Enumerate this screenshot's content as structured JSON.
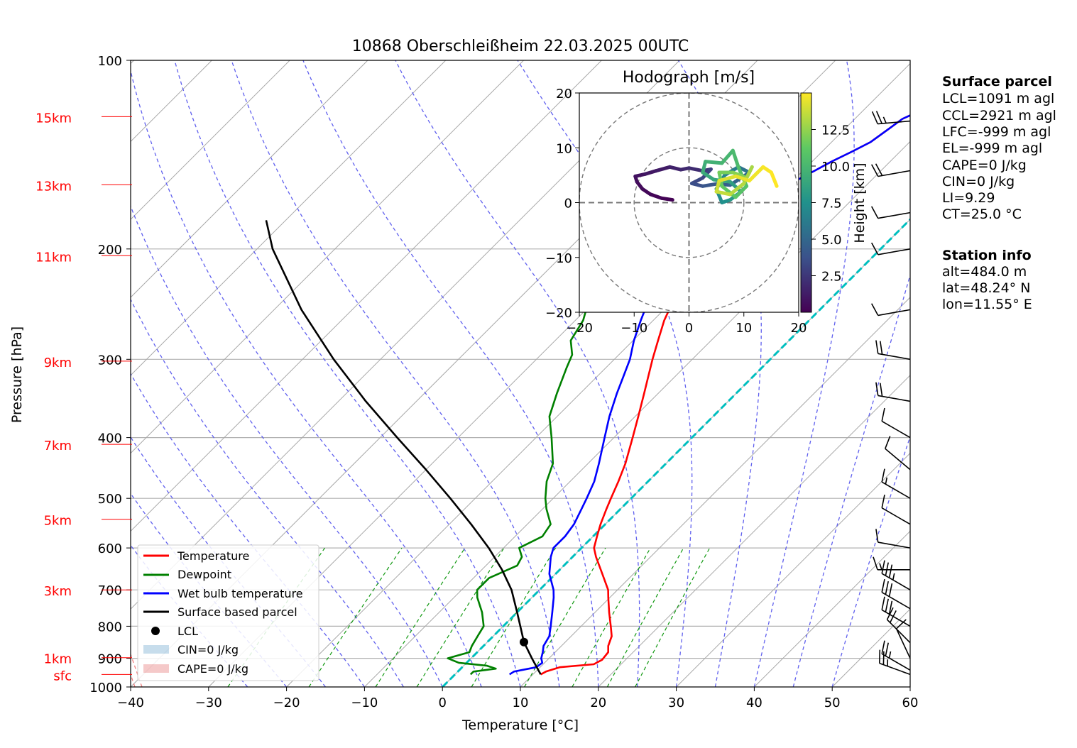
{
  "chart_data": {
    "type": "line",
    "title": "10868 Oberschleißheim 22.03.2025 00UTC",
    "xlabel": "Temperature [°C]",
    "ylabel": "Pressure [hPa]",
    "xlim": [
      -40,
      60
    ],
    "ylim": [
      1000,
      100
    ],
    "y_scale": "log",
    "x_ticks": [
      "−40",
      "−30",
      "−20",
      "−10",
      "0",
      "10",
      "20",
      "30",
      "40",
      "50",
      "60"
    ],
    "y_ticks": [
      {
        "p": 1000,
        "label": "1000"
      },
      {
        "p": 900,
        "label": "900"
      },
      {
        "p": 800,
        "label": "800"
      },
      {
        "p": 700,
        "label": "700"
      },
      {
        "p": 600,
        "label": "600"
      },
      {
        "p": 500,
        "label": "500"
      },
      {
        "p": 400,
        "label": "400"
      },
      {
        "p": 300,
        "label": "300"
      },
      {
        "p": 200,
        "label": "200"
      },
      {
        "p": 100,
        "label": "100"
      }
    ],
    "height_labels": [
      {
        "label": "15km",
        "p": 123
      },
      {
        "label": "13km",
        "p": 158
      },
      {
        "label": "11km",
        "p": 205
      },
      {
        "label": "9km",
        "p": 302
      },
      {
        "label": "7km",
        "p": 410
      },
      {
        "label": "5km",
        "p": 540
      },
      {
        "label": "3km",
        "p": 700
      },
      {
        "label": "1km",
        "p": 898
      },
      {
        "label": "sfc",
        "p": 955
      }
    ],
    "legend": {
      "placement": "lower-left",
      "entries": [
        "Temperature",
        "Dewpoint",
        "Wet bulb temperature",
        "Surface based parcel",
        "LCL",
        "CIN=0 J/kg",
        "CAPE=0 J/kg"
      ]
    },
    "series": [
      {
        "name": "Temperature",
        "color": "#ff0000",
        "points": [
          [
            955,
            11.0
          ],
          [
            945,
            11.3
          ],
          [
            930,
            12.5
          ],
          [
            920,
            16.5
          ],
          [
            905,
            17.0
          ],
          [
            880,
            16.8
          ],
          [
            860,
            16.0
          ],
          [
            830,
            15.2
          ],
          [
            800,
            13.8
          ],
          [
            760,
            11.8
          ],
          [
            720,
            9.8
          ],
          [
            700,
            8.8
          ],
          [
            660,
            6.0
          ],
          [
            620,
            3.0
          ],
          [
            600,
            1.6
          ],
          [
            575,
            0.5
          ],
          [
            550,
            -0.6
          ],
          [
            520,
            -1.8
          ],
          [
            500,
            -2.6
          ],
          [
            470,
            -3.8
          ],
          [
            440,
            -5.2
          ],
          [
            400,
            -7.6
          ],
          [
            370,
            -9.6
          ],
          [
            340,
            -11.8
          ],
          [
            320,
            -13.4
          ],
          [
            300,
            -15.1
          ],
          [
            280,
            -16.8
          ],
          [
            260,
            -18.6
          ],
          [
            240,
            -20.1
          ],
          [
            220,
            -22.1
          ],
          [
            205,
            -23.4
          ],
          [
            195,
            -24.2
          ],
          [
            185,
            -25.0
          ],
          [
            175,
            -24.7
          ],
          [
            170,
            -23.5
          ],
          [
            165,
            -22.0
          ],
          [
            160,
            -20.8
          ],
          [
            155,
            -19.5
          ],
          [
            150,
            -18.5
          ],
          [
            145,
            -17.5
          ],
          [
            140,
            -16.2
          ],
          [
            135,
            -15.0
          ],
          [
            128,
            -14.3
          ],
          [
            124,
            -13.9
          ],
          [
            120,
            -12.5
          ]
        ]
      },
      {
        "name": "Dewpoint",
        "color": "#008000",
        "points": [
          [
            955,
            2.0
          ],
          [
            945,
            2.0
          ],
          [
            935,
            4.5
          ],
          [
            925,
            3.0
          ],
          [
            915,
            -1.0
          ],
          [
            900,
            -3.0
          ],
          [
            880,
            -1.0
          ],
          [
            860,
            -1.5
          ],
          [
            830,
            -2.0
          ],
          [
            800,
            -2.5
          ],
          [
            760,
            -4.5
          ],
          [
            720,
            -7.0
          ],
          [
            700,
            -8.0
          ],
          [
            670,
            -8.0
          ],
          [
            640,
            -6.0
          ],
          [
            620,
            -6.5
          ],
          [
            600,
            -8.0
          ],
          [
            575,
            -6.5
          ],
          [
            550,
            -7.0
          ],
          [
            520,
            -9.5
          ],
          [
            500,
            -11.0
          ],
          [
            470,
            -13.0
          ],
          [
            440,
            -14.5
          ],
          [
            400,
            -18.0
          ],
          [
            370,
            -21.0
          ],
          [
            340,
            -23.0
          ],
          [
            310,
            -25.0
          ],
          [
            295,
            -26.0
          ],
          [
            280,
            -28.0
          ],
          [
            260,
            -29.0
          ],
          [
            240,
            -31.0
          ],
          [
            220,
            -33.5
          ],
          [
            205,
            -35.0
          ],
          [
            190,
            -36.0
          ],
          [
            180,
            -37.5
          ],
          [
            170,
            -37.0
          ],
          [
            165,
            -36.0
          ],
          [
            160,
            -39.0
          ],
          [
            155,
            -42.0
          ],
          [
            150,
            -45.0
          ],
          [
            145,
            -44.0
          ],
          [
            140,
            -45.0
          ],
          [
            130,
            -44.0
          ],
          [
            125,
            -43.5
          ],
          [
            121,
            -43.0
          ]
        ]
      },
      {
        "name": "Wet bulb temperature",
        "color": "#0000ff",
        "points": [
          [
            955,
            7.0
          ],
          [
            945,
            7.2
          ],
          [
            930,
            9.5
          ],
          [
            915,
            9.7
          ],
          [
            900,
            9.0
          ],
          [
            880,
            8.4
          ],
          [
            860,
            7.7
          ],
          [
            830,
            7.2
          ],
          [
            800,
            6.1
          ],
          [
            760,
            4.5
          ],
          [
            720,
            2.8
          ],
          [
            700,
            1.8
          ],
          [
            660,
            -0.8
          ],
          [
            620,
            -2.8
          ],
          [
            600,
            -3.6
          ],
          [
            575,
            -3.6
          ],
          [
            550,
            -4.0
          ],
          [
            520,
            -5.0
          ],
          [
            500,
            -5.7
          ],
          [
            470,
            -6.9
          ],
          [
            440,
            -8.6
          ],
          [
            400,
            -11.2
          ],
          [
            370,
            -13.3
          ],
          [
            340,
            -15.3
          ],
          [
            320,
            -16.6
          ],
          [
            300,
            -18.0
          ],
          [
            280,
            -19.9
          ],
          [
            260,
            -21.6
          ],
          [
            240,
            -23.3
          ],
          [
            220,
            -25.7
          ],
          [
            205,
            -27.1
          ],
          [
            195,
            -28.0
          ],
          [
            185,
            -28.8
          ],
          [
            175,
            -28.0
          ],
          [
            170,
            -25.5
          ],
          [
            165,
            -22.0
          ],
          [
            160,
            -20.8
          ],
          [
            155,
            -19.5
          ],
          [
            150,
            -18.5
          ],
          [
            145,
            -17.5
          ],
          [
            140,
            -16.2
          ],
          [
            135,
            -15.0
          ],
          [
            128,
            -14.3
          ],
          [
            124,
            -13.9
          ],
          [
            120,
            -12.5
          ]
        ]
      },
      {
        "name": "Surface based parcel",
        "color": "#000000",
        "points": [
          [
            955,
            11.0
          ],
          [
            900,
            7.8
          ],
          [
            848,
            4.7
          ],
          [
            800,
            2.2
          ],
          [
            760,
            0.0
          ],
          [
            700,
            -3.6
          ],
          [
            650,
            -7.4
          ],
          [
            600,
            -11.9
          ],
          [
            550,
            -17.2
          ],
          [
            500,
            -23.2
          ],
          [
            450,
            -30.0
          ],
          [
            400,
            -37.8
          ],
          [
            350,
            -46.5
          ],
          [
            300,
            -56.0
          ],
          [
            250,
            -66.5
          ],
          [
            200,
            -78.0
          ],
          [
            180,
            -82.5
          ]
        ]
      }
    ],
    "lcl": {
      "p": 848,
      "t": 4.7
    },
    "freezing_line": {
      "temperature": 0,
      "color": "#00bfbf"
    },
    "wind_barbs": [
      {
        "p": 955,
        "dir": 290,
        "speed_kt": 25
      },
      {
        "p": 940,
        "dir": 300,
        "speed_kt": 25
      },
      {
        "p": 900,
        "dir": 335,
        "speed_kt": 10
      },
      {
        "p": 850,
        "dir": 315,
        "speed_kt": 20
      },
      {
        "p": 800,
        "dir": 300,
        "speed_kt": 30
      },
      {
        "p": 750,
        "dir": 300,
        "speed_kt": 30
      },
      {
        "p": 700,
        "dir": 300,
        "speed_kt": 35
      },
      {
        "p": 650,
        "dir": 270,
        "speed_kt": 15
      },
      {
        "p": 600,
        "dir": 280,
        "speed_kt": 10
      },
      {
        "p": 550,
        "dir": 300,
        "speed_kt": 10
      },
      {
        "p": 500,
        "dir": 300,
        "speed_kt": 15
      },
      {
        "p": 450,
        "dir": 310,
        "speed_kt": 10
      },
      {
        "p": 400,
        "dir": 300,
        "speed_kt": 10
      },
      {
        "p": 350,
        "dir": 280,
        "speed_kt": 20
      },
      {
        "p": 300,
        "dir": 280,
        "speed_kt": 20
      },
      {
        "p": 250,
        "dir": 260,
        "speed_kt": 10
      },
      {
        "p": 200,
        "dir": 260,
        "speed_kt": 10
      },
      {
        "p": 175,
        "dir": 260,
        "speed_kt": 10
      },
      {
        "p": 150,
        "dir": 260,
        "speed_kt": 20
      },
      {
        "p": 125,
        "dir": 265,
        "speed_kt": 25
      }
    ],
    "hodograph": {
      "title": "Hodograph [m/s]",
      "xlim": [
        -20,
        20
      ],
      "ylim": [
        -20,
        20
      ],
      "ticks": [
        "−20",
        "−10",
        "0",
        "10",
        "20"
      ],
      "colorbar": {
        "label": "Height [km]",
        "ticks": [
          "2.5",
          "5.0",
          "7.5",
          "10.0",
          "12.5"
        ],
        "range_km": [
          0,
          15
        ]
      },
      "points": [
        [
          -3,
          0.5,
          0.1
        ],
        [
          -5,
          0.8,
          0.2
        ],
        [
          -7,
          1.5,
          0.3
        ],
        [
          -8.5,
          2.5,
          0.5
        ],
        [
          -9.5,
          3.8,
          0.6
        ],
        [
          -9.8,
          4.8,
          0.8
        ],
        [
          -8,
          5.2,
          1.0
        ],
        [
          -6,
          5.8,
          1.2
        ],
        [
          -3.5,
          6.5,
          1.5
        ],
        [
          -1.5,
          6,
          1.8
        ],
        [
          0,
          6.3,
          2.0
        ],
        [
          2.5,
          5.8,
          2.5
        ],
        [
          4,
          6.1,
          3.0
        ],
        [
          2.5,
          4.5,
          3.3
        ],
        [
          0.5,
          3.5,
          3.6
        ],
        [
          2.5,
          3.0,
          4.0
        ],
        [
          5,
          3.4,
          4.4
        ],
        [
          7.5,
          3.2,
          4.8
        ],
        [
          9.5,
          4.5,
          5.3
        ],
        [
          11,
          5.5,
          5.8
        ],
        [
          9,
          6.5,
          6.3
        ],
        [
          6.5,
          5.0,
          6.8
        ],
        [
          5,
          2.5,
          7.2
        ],
        [
          6,
          0.0,
          7.5
        ],
        [
          7.5,
          0.5,
          7.9
        ],
        [
          9.5,
          2.0,
          8.3
        ],
        [
          7.5,
          3.8,
          8.7
        ],
        [
          4.5,
          4.2,
          9.0
        ],
        [
          2.5,
          5.5,
          9.3
        ],
        [
          3,
          7.5,
          9.6
        ],
        [
          6,
          7.2,
          9.9
        ],
        [
          8,
          9.5,
          10.2
        ],
        [
          9,
          6.5,
          10.5
        ],
        [
          10.5,
          3.0,
          10.8
        ],
        [
          8.5,
          1.0,
          11.1
        ],
        [
          6,
          3.0,
          11.4
        ],
        [
          5.5,
          5.5,
          11.8
        ],
        [
          8,
          5.5,
          12.2
        ],
        [
          10.5,
          4.5,
          12.6
        ],
        [
          11.5,
          6.5,
          13.0
        ],
        [
          10,
          3.5,
          13.3
        ],
        [
          7.5,
          1.5,
          13.6
        ],
        [
          5,
          2.0,
          13.9
        ],
        [
          5.5,
          4.0,
          14.2
        ],
        [
          8.5,
          4.8,
          14.5
        ],
        [
          11,
          4.0,
          14.7
        ],
        [
          13.5,
          6.5,
          14.9
        ],
        [
          15,
          5.5,
          15.0
        ],
        [
          16,
          3.0,
          15.0
        ]
      ]
    }
  },
  "surface_parcel": {
    "heading": "Surface parcel",
    "lines": [
      "LCL=1091 m agl",
      "CCL=2921 m agl",
      "LFC=-999 m agl",
      "EL=-999 m agl",
      "CAPE=0 J/kg",
      "CIN=0 J/kg",
      "LI=9.29",
      "CT=25.0 °C"
    ]
  },
  "station_info": {
    "heading": "Station info",
    "lines": [
      "alt=484.0 m",
      "lat=48.24° N",
      "lon=11.55° E"
    ]
  }
}
